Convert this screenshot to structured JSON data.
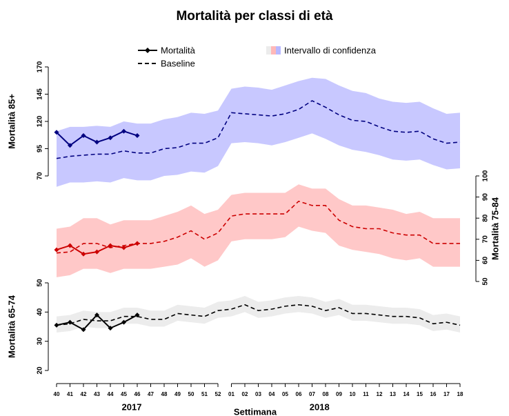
{
  "chart_data": {
    "type": "line",
    "title": "Mortalità per classi di età",
    "legend": [
      "Mortalità",
      "Baseline",
      "Intervallo di confidenza"
    ],
    "x_label": "Settimana",
    "years": [
      "2017",
      "2018"
    ],
    "categories": [
      "40",
      "41",
      "42",
      "43",
      "44",
      "45",
      "46",
      "47",
      "48",
      "49",
      "50",
      "51",
      "52",
      "01",
      "02",
      "03",
      "04",
      "05",
      "06",
      "07",
      "08",
      "09",
      "10",
      "11",
      "12",
      "13",
      "14",
      "15",
      "16",
      "17",
      "18"
    ],
    "panels": [
      {
        "y_label": "Mortalità 85+",
        "axis": "left",
        "ylim": [
          70,
          170
        ],
        "yticks": [
          70,
          95,
          120,
          145,
          170
        ],
        "band_color": "#c8c8ff",
        "line_color": "#000080",
        "observed": [
          110,
          98,
          107,
          101,
          105,
          111,
          107,
          null,
          null,
          null,
          null,
          null,
          null,
          null,
          null,
          null,
          null,
          null,
          null,
          null,
          null,
          null,
          null,
          null,
          null,
          null,
          null,
          null,
          null,
          null,
          null
        ],
        "baseline": [
          86,
          88,
          89,
          90,
          90,
          93,
          91,
          91,
          95,
          96,
          100,
          100,
          105,
          128,
          127,
          126,
          125,
          127,
          131,
          139,
          133,
          126,
          121,
          120,
          115,
          111,
          110,
          111,
          104,
          100,
          101
        ],
        "ci_upper": [
          111,
          115,
          115,
          116,
          115,
          120,
          118,
          118,
          122,
          124,
          128,
          127,
          130,
          150,
          152,
          151,
          149,
          153,
          157,
          160,
          159,
          153,
          148,
          146,
          141,
          138,
          137,
          138,
          132,
          127,
          128
        ],
        "ci_lower": [
          60,
          64,
          64,
          65,
          64,
          68,
          66,
          66,
          70,
          71,
          74,
          73,
          79,
          100,
          101,
          100,
          98,
          101,
          105,
          109,
          104,
          98,
          94,
          92,
          89,
          85,
          84,
          85,
          80,
          76,
          77
        ]
      },
      {
        "y_label": "Mortalità 75-84",
        "axis": "right",
        "ylim": [
          50,
          100
        ],
        "yticks": [
          50,
          60,
          70,
          80,
          90,
          100
        ],
        "band_color": "#ffc8c8",
        "line_color": "#cc0000",
        "observed": [
          65,
          67,
          63,
          64,
          67,
          66,
          68,
          null,
          null,
          null,
          null,
          null,
          null,
          null,
          null,
          null,
          null,
          null,
          null,
          null,
          null,
          null,
          null,
          null,
          null,
          null,
          null,
          null,
          null,
          null,
          null
        ],
        "baseline": [
          63.5,
          64,
          68,
          68,
          66,
          67,
          68,
          68,
          69,
          71,
          74,
          70,
          73,
          81,
          82,
          82,
          82,
          82,
          88,
          86,
          86,
          79,
          76,
          75,
          75,
          73,
          72,
          72,
          68,
          68,
          68
        ],
        "ci_upper": [
          75,
          76,
          80,
          80,
          77,
          79,
          79,
          79,
          81,
          83,
          86,
          82,
          84,
          91,
          92,
          92,
          92,
          92,
          96,
          94,
          94,
          89,
          86,
          86,
          85,
          84,
          82,
          83,
          80,
          80,
          80
        ],
        "ci_lower": [
          52,
          53,
          56,
          56,
          54,
          56,
          56,
          56,
          57,
          58,
          61,
          57,
          60,
          69,
          70,
          70,
          70,
          71,
          76,
          74,
          73,
          67,
          65,
          64,
          63,
          61,
          60,
          61,
          57,
          57,
          57
        ]
      },
      {
        "y_label": "Mortalità 65-74",
        "axis": "left",
        "ylim": [
          20,
          50
        ],
        "yticks": [
          20,
          30,
          40,
          50
        ],
        "band_color": "#ececec",
        "line_color": "#000000",
        "observed": [
          35.5,
          36.5,
          34,
          39,
          34.5,
          36.5,
          39,
          null,
          null,
          null,
          null,
          null,
          null,
          null,
          null,
          null,
          null,
          null,
          null,
          null,
          null,
          null,
          null,
          null,
          null,
          null,
          null,
          null,
          null,
          null,
          null
        ],
        "baseline": [
          35.5,
          36,
          37.5,
          37,
          37,
          38.5,
          38.5,
          37.5,
          37.5,
          39.5,
          39,
          38.5,
          40.5,
          41,
          42.5,
          40.5,
          41,
          42,
          42.5,
          42,
          40.5,
          41.5,
          39.5,
          39.5,
          39,
          38.5,
          38.5,
          38,
          36,
          36.5,
          35.5
        ],
        "ci_upper": [
          38.5,
          39,
          40.5,
          40,
          40,
          41.5,
          41.5,
          40.5,
          40.5,
          42.5,
          42,
          41.5,
          43.5,
          44,
          45.5,
          43.5,
          44,
          45,
          45.5,
          45,
          43.5,
          44.5,
          42.5,
          42.5,
          42,
          41.5,
          41.5,
          41,
          39,
          39.5,
          38.5
        ],
        "ci_lower": [
          33,
          33.5,
          35,
          34.5,
          34.5,
          36,
          36,
          35,
          35,
          37,
          36.5,
          36,
          38,
          38.5,
          40,
          38,
          38.5,
          39.5,
          40,
          39.5,
          38,
          39,
          37,
          37,
          36.5,
          36,
          36,
          35.5,
          33.5,
          34,
          33
        ]
      }
    ]
  }
}
